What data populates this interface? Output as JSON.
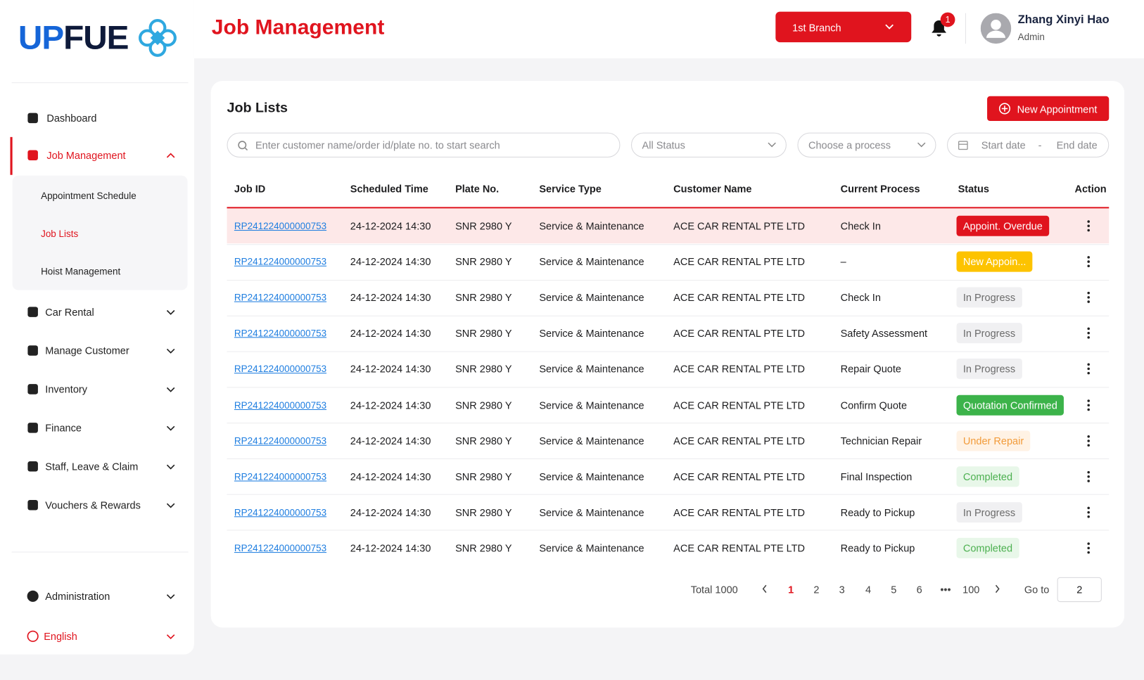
{
  "logo": [
    "UP",
    "FUE"
  ],
  "header": {
    "title": "Job Management",
    "branch": "1st Branch",
    "notifications": "1",
    "user_name": "Zhang Xinyi Hao",
    "user_role": "Admin"
  },
  "nav": {
    "items": [
      "Dashboard",
      "Job Management",
      "Car Rental",
      "Manage Customer",
      "Inventory",
      "Finance",
      "Staff, Leave & Claim",
      "Vouchers & Rewards"
    ],
    "sub_items": [
      "Appointment Schedule",
      "Job Lists",
      "Hoist Management"
    ],
    "footer_items": [
      "Administration",
      "English"
    ]
  },
  "card": {
    "title": "Job Lists",
    "new_button": "New Appointment",
    "search_placeholder": "Enter customer name/order id/plate no. to start search",
    "status_filter": "All Status",
    "process_filter": "Choose a process",
    "start_date": "Start date",
    "date_sep": "-",
    "end_date": "End date"
  },
  "table": {
    "columns": [
      "Job ID",
      "Scheduled Time",
      "Plate No.",
      "Service Type",
      "Customer Name",
      "Current Process",
      "Status",
      "Action"
    ],
    "rows": [
      [
        "RP241224000000753",
        "24-12-2024 14:30",
        "SNR 2980 Y",
        "Service & Maintenance",
        "ACE CAR RENTAL PTE LTD",
        "Check In",
        "Appoint. Overdue"
      ],
      [
        "RP241224000000753",
        "24-12-2024 14:30",
        "SNR 2980 Y",
        "Service & Maintenance",
        "ACE CAR RENTAL PTE LTD",
        "–",
        "New Appoin..."
      ],
      [
        "RP241224000000753",
        "24-12-2024 14:30",
        "SNR 2980 Y",
        "Service & Maintenance",
        "ACE CAR RENTAL PTE LTD",
        "Check In",
        "In Progress"
      ],
      [
        "RP241224000000753",
        "24-12-2024 14:30",
        "SNR 2980 Y",
        "Service & Maintenance",
        "ACE CAR RENTAL PTE LTD",
        "Safety Assessment",
        "In Progress"
      ],
      [
        "RP241224000000753",
        "24-12-2024 14:30",
        "SNR 2980 Y",
        "Service & Maintenance",
        "ACE CAR RENTAL PTE LTD",
        "Repair Quote",
        "In Progress"
      ],
      [
        "RP241224000000753",
        "24-12-2024 14:30",
        "SNR 2980 Y",
        "Service & Maintenance",
        "ACE CAR RENTAL PTE LTD",
        "Confirm Quote",
        "Quotation Confirmed"
      ],
      [
        "RP241224000000753",
        "24-12-2024 14:30",
        "SNR 2980 Y",
        "Service & Maintenance",
        "ACE CAR RENTAL PTE LTD",
        "Technician Repair",
        "Under Repair"
      ],
      [
        "RP241224000000753",
        "24-12-2024 14:30",
        "SNR 2980 Y",
        "Service & Maintenance",
        "ACE CAR RENTAL PTE LTD",
        "Final Inspection",
        "Completed"
      ],
      [
        "RP241224000000753",
        "24-12-2024 14:30",
        "SNR 2980 Y",
        "Service & Maintenance",
        "ACE CAR RENTAL PTE LTD",
        "Ready to Pickup",
        "In Progress"
      ],
      [
        "RP241224000000753",
        "24-12-2024 14:30",
        "SNR 2980 Y",
        "Service & Maintenance",
        "ACE CAR RENTAL PTE LTD",
        "Ready to Pickup",
        "Completed"
      ]
    ],
    "status_colors": [
      [
        "#ffffff",
        "#e0141e"
      ],
      [
        "#ffffff",
        "#fdc300"
      ],
      [
        "#6b6b6b",
        "#f0f0f2"
      ],
      [
        "#6b6b6b",
        "#f0f0f2"
      ],
      [
        "#6b6b6b",
        "#f0f0f2"
      ],
      [
        "#ffffff",
        "#3cb34a"
      ],
      [
        "#f29b3a",
        "#fff2e4"
      ],
      [
        "#4cb050",
        "#e8f7e9"
      ],
      [
        "#6b6b6b",
        "#f0f0f2"
      ],
      [
        "#4cb050",
        "#e8f7e9"
      ]
    ]
  },
  "pagination": {
    "total": "Total 1000",
    "pages": [
      "1",
      "2",
      "3",
      "4",
      "5",
      "6",
      "•••",
      "100"
    ],
    "goto_label": "Go to",
    "goto_value": "2"
  }
}
